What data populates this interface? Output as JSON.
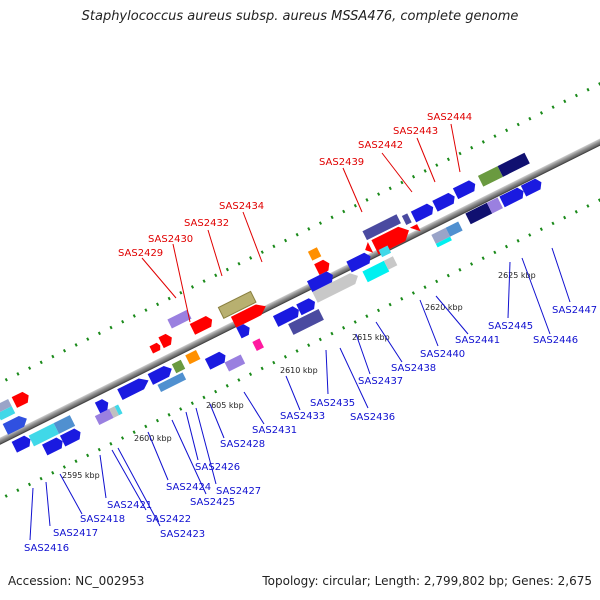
{
  "title": "Staphylococcus aureus subsp. aureus MSSA476, complete genome",
  "accession_text": "Accession: NC_002953",
  "summary_text": "Topology: circular; Length: 2,799,802 bp; Genes: 2,675",
  "ticks": [
    "2595 kbp",
    "2600 kbp",
    "2605 kbp",
    "2610 kbp",
    "2615 kbp",
    "2620 kbp",
    "2625 kbp"
  ],
  "genes_top": [
    "SAS2429",
    "SAS2430",
    "SAS2432",
    "SAS2434",
    "SAS2439",
    "SAS2442",
    "SAS2443",
    "SAS2444"
  ],
  "genes_bottom": [
    "SAS2416",
    "SAS2417",
    "SAS2418",
    "SAS2421",
    "SAS2422",
    "SAS2423",
    "SAS2424",
    "SAS2425",
    "SAS2426",
    "SAS2427",
    "SAS2428",
    "SAS2431",
    "SAS2433",
    "SAS2435",
    "SAS2436",
    "SAS2437",
    "SAS2438",
    "SAS2440",
    "SAS2441",
    "SAS2445",
    "SAS2446",
    "SAS2447"
  ],
  "colors": {
    "backbone": "#888888",
    "forward_gene": "#0000e0",
    "reverse_gene": "#ff0000",
    "gc_dots": "#1a8a1a",
    "label_top": "#e00000",
    "label_bottom": "#1010d0"
  }
}
